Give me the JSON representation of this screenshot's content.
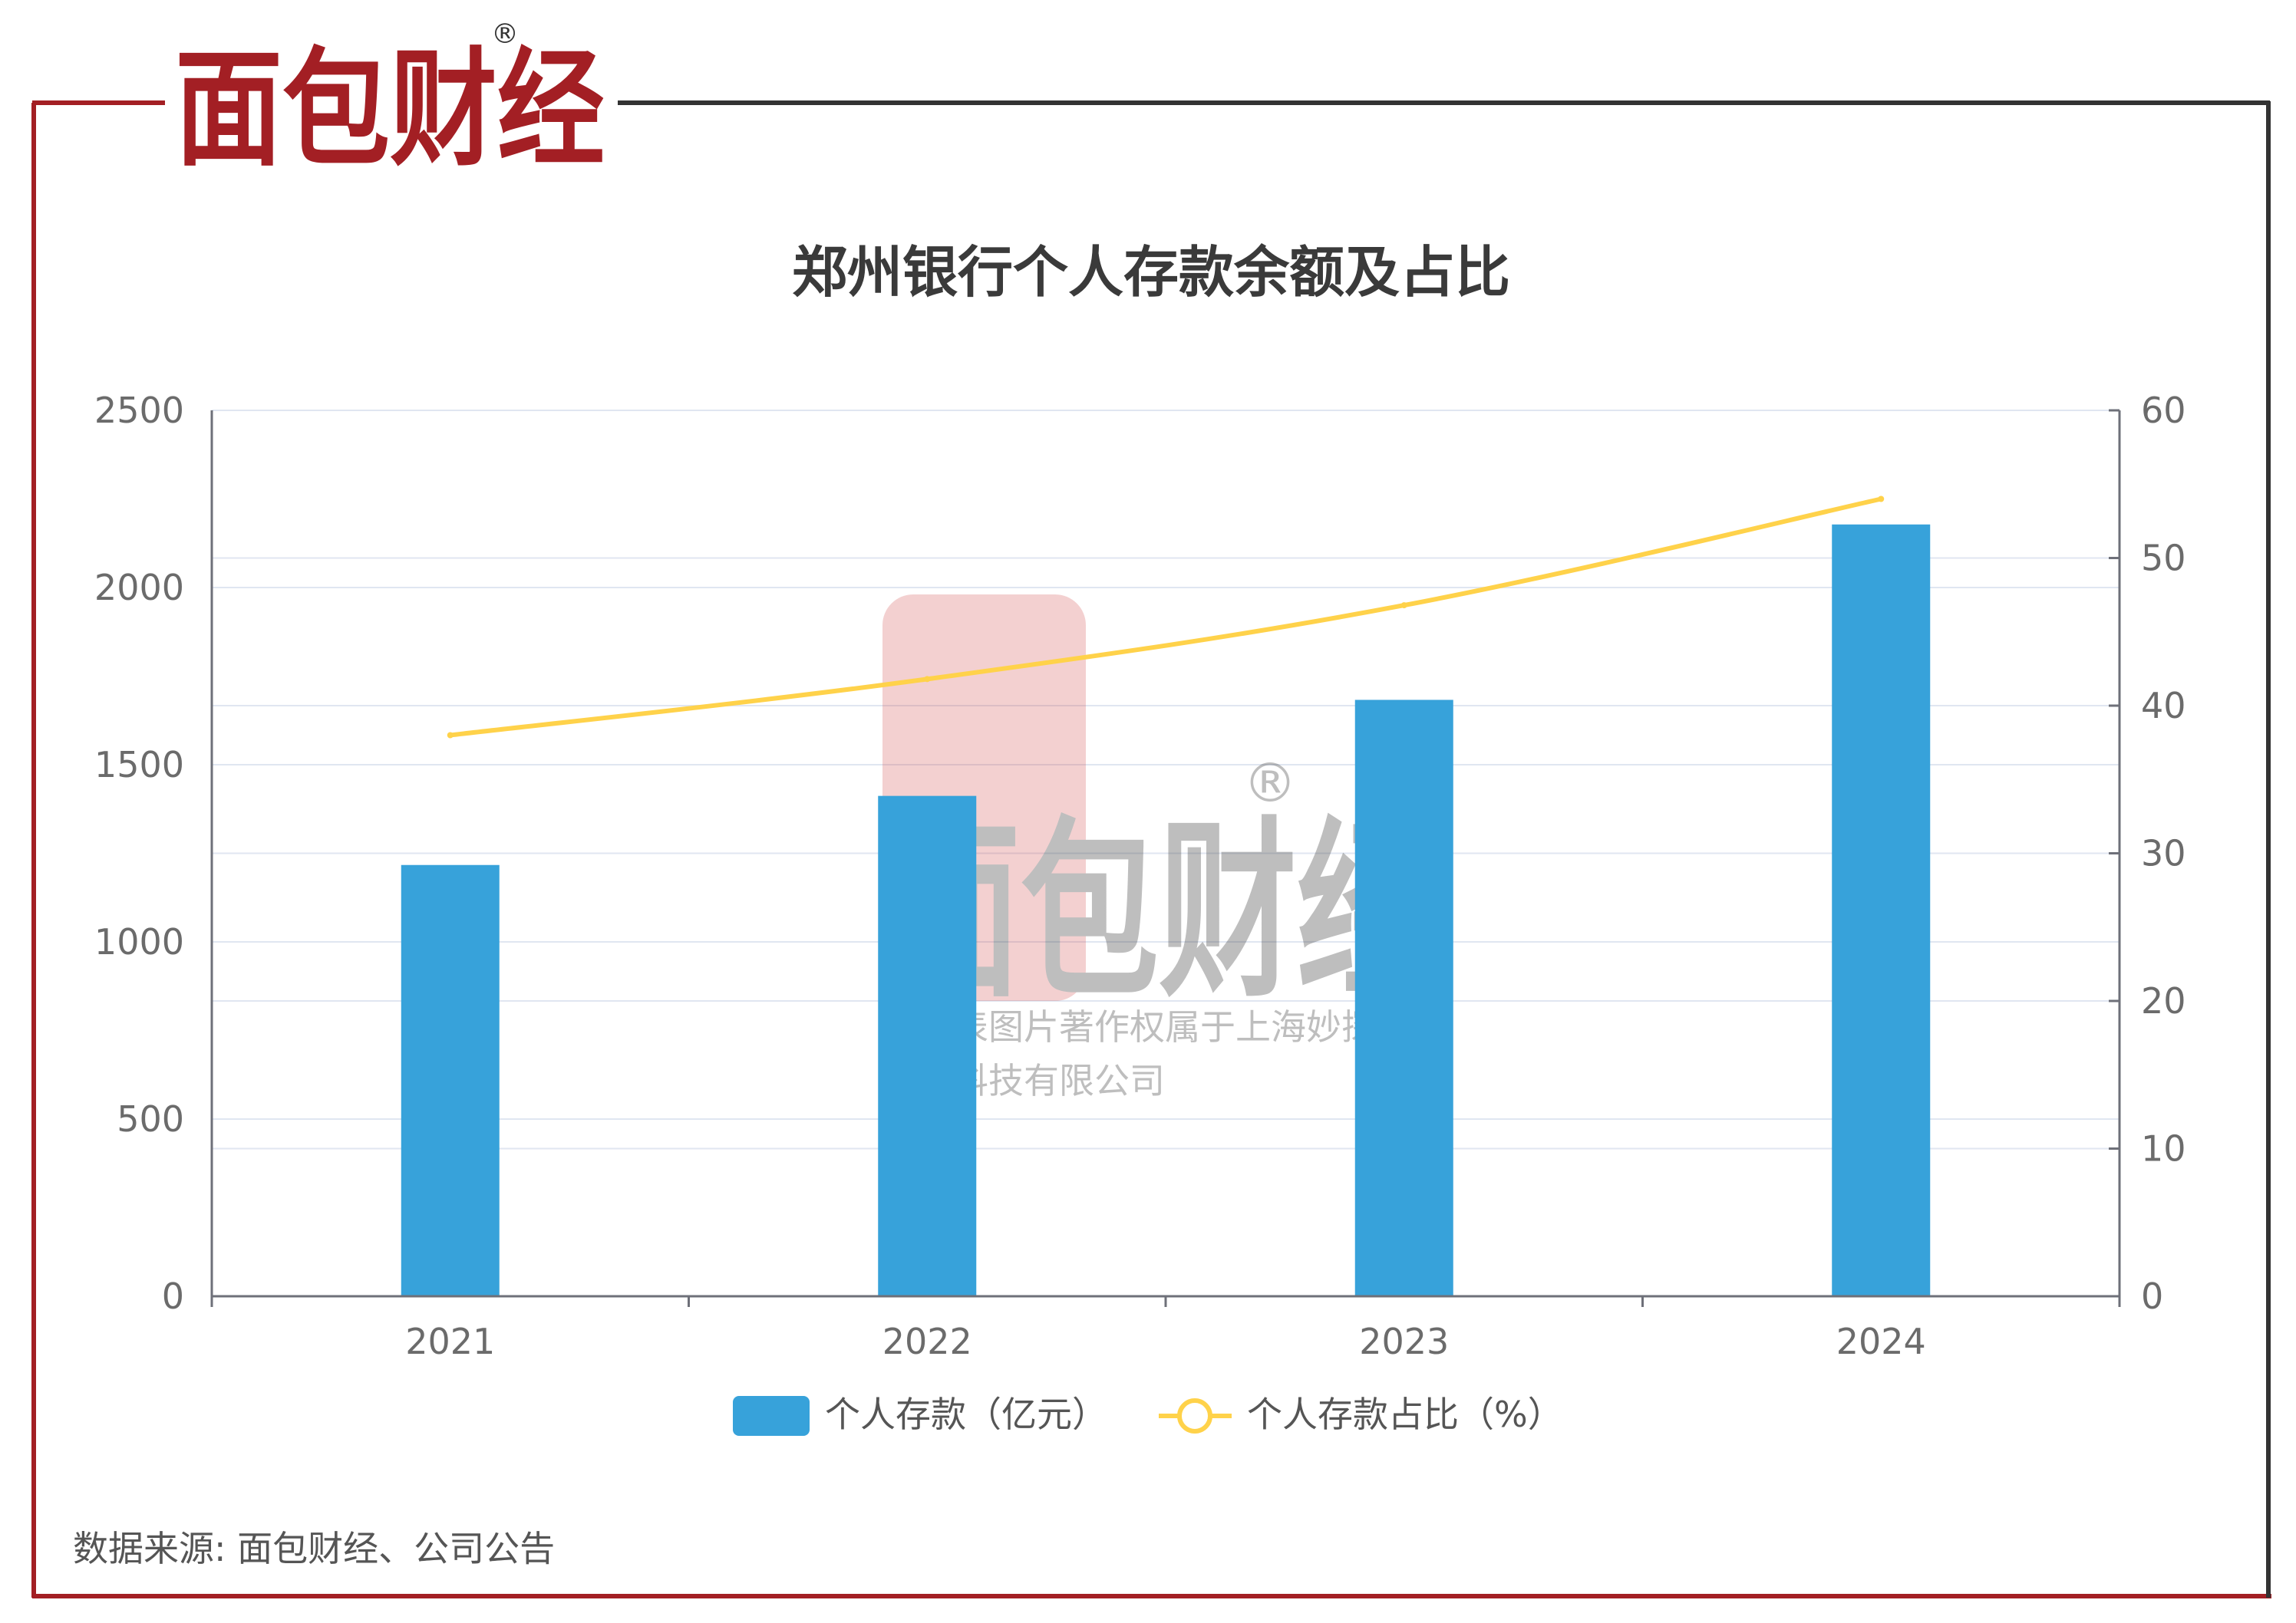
{
  "brand": {
    "logo_text": "面包财经",
    "registered_mark": "®",
    "watermark_lines": [
      "本图表图片著作权属于上海妙探",
      "网络科技有限公司"
    ],
    "colors": {
      "red": "#a31f24",
      "dark": "#333333"
    }
  },
  "source_text": "数据来源: 面包财经、公司公告",
  "chart_data": {
    "type": "bar",
    "title": "郑州银行个人存款余额及占比",
    "categories": [
      "2021",
      "2022",
      "2023",
      "2024"
    ],
    "series": [
      {
        "name": "个人存款（亿元）",
        "type": "bar",
        "axis": "left",
        "values": [
          1217,
          1412,
          1683,
          2178
        ],
        "color": "#37a2da"
      },
      {
        "name": "个人存款占比（%）",
        "type": "line",
        "axis": "right",
        "values": [
          38.0,
          41.8,
          46.8,
          54.0
        ],
        "color": "#ffd24a"
      }
    ],
    "y_left": {
      "min": 0,
      "max": 2500,
      "ticks": [
        "0",
        "500",
        "1000",
        "1500",
        "2000",
        "2500"
      ]
    },
    "y_right": {
      "min": 0,
      "max": 60,
      "ticks": [
        "0",
        "10",
        "20",
        "30",
        "40",
        "50",
        "60"
      ]
    },
    "grid": true,
    "legend_position": "bottom"
  }
}
